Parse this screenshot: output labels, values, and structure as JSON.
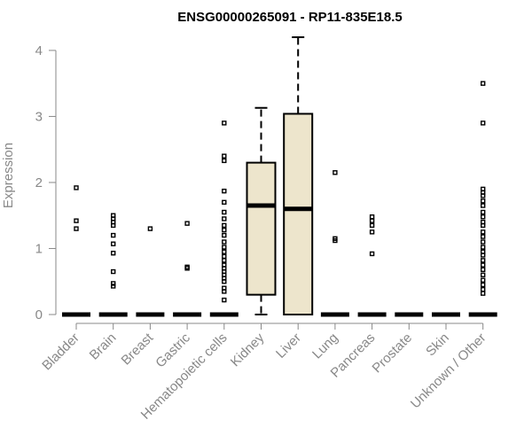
{
  "chart_data": {
    "type": "box",
    "title": "ENSG00000265091 - RP11-835E18.5",
    "ylabel": "Expression",
    "xlabel": "",
    "ylim": [
      0,
      4.2
    ],
    "yticks": [
      0,
      1,
      2,
      3,
      4
    ],
    "box_fill": "#ede5cc",
    "axis_color": "#888888",
    "categories": [
      "Bladder",
      "Brain",
      "Breast",
      "Gastric",
      "Hematopoietic cells",
      "Kidney",
      "Liver",
      "Lung",
      "Pancreas",
      "Prostate",
      "Skin",
      "Unknown / Other"
    ],
    "boxes": [
      {
        "q1": 0,
        "median": 0,
        "q3": 0,
        "whisker_low": 0,
        "whisker_high": 0,
        "outliers": [
          1.92,
          1.42,
          1.3
        ]
      },
      {
        "q1": 0,
        "median": 0,
        "q3": 0,
        "whisker_low": 0,
        "whisker_high": 0,
        "outliers": [
          1.5,
          1.45,
          1.4,
          1.35,
          1.2,
          1.07,
          0.93,
          0.65,
          0.47,
          0.43
        ]
      },
      {
        "q1": 0,
        "median": 0,
        "q3": 0,
        "whisker_low": 0,
        "whisker_high": 0,
        "outliers": [
          1.3
        ]
      },
      {
        "q1": 0,
        "median": 0,
        "q3": 0,
        "whisker_low": 0,
        "whisker_high": 0,
        "outliers": [
          1.38,
          0.72,
          0.7
        ]
      },
      {
        "q1": 0,
        "median": 0,
        "q3": 0,
        "whisker_low": 0,
        "whisker_high": 0,
        "outliers": [
          2.9,
          2.4,
          2.33,
          1.87,
          1.7,
          1.55,
          1.45,
          1.35,
          1.28,
          1.2,
          1.1,
          1.02,
          0.95,
          0.88,
          0.82,
          0.75,
          0.7,
          0.65,
          0.6,
          0.55,
          0.5,
          0.4,
          0.35,
          0.22
        ]
      },
      {
        "q1": 0.3,
        "median": 1.65,
        "q3": 2.3,
        "whisker_low": 0,
        "whisker_high": 3.13,
        "outliers": []
      },
      {
        "q1": 0,
        "median": 1.6,
        "q3": 3.04,
        "whisker_low": 0,
        "whisker_high": 4.2,
        "outliers": []
      },
      {
        "q1": 0,
        "median": 0,
        "q3": 0,
        "whisker_low": 0,
        "whisker_high": 0,
        "outliers": [
          2.15,
          1.15,
          1.12
        ]
      },
      {
        "q1": 0,
        "median": 0,
        "q3": 0,
        "whisker_low": 0,
        "whisker_high": 0,
        "outliers": [
          1.48,
          1.42,
          1.35,
          1.25,
          0.92
        ]
      },
      {
        "q1": 0,
        "median": 0,
        "q3": 0,
        "whisker_low": 0,
        "whisker_high": 0,
        "outliers": []
      },
      {
        "q1": 0,
        "median": 0,
        "q3": 0,
        "whisker_low": 0,
        "whisker_high": 0,
        "outliers": []
      },
      {
        "q1": 0,
        "median": 0,
        "q3": 0,
        "whisker_low": 0,
        "whisker_high": 0,
        "outliers": [
          3.5,
          2.9,
          1.9,
          1.85,
          1.8,
          1.72,
          1.65,
          1.55,
          1.48,
          1.4,
          1.35,
          1.25,
          1.18,
          1.1,
          1.02,
          0.95,
          0.9,
          0.82,
          0.75,
          0.68,
          0.6,
          0.52,
          0.45,
          0.38,
          0.32
        ]
      }
    ]
  }
}
